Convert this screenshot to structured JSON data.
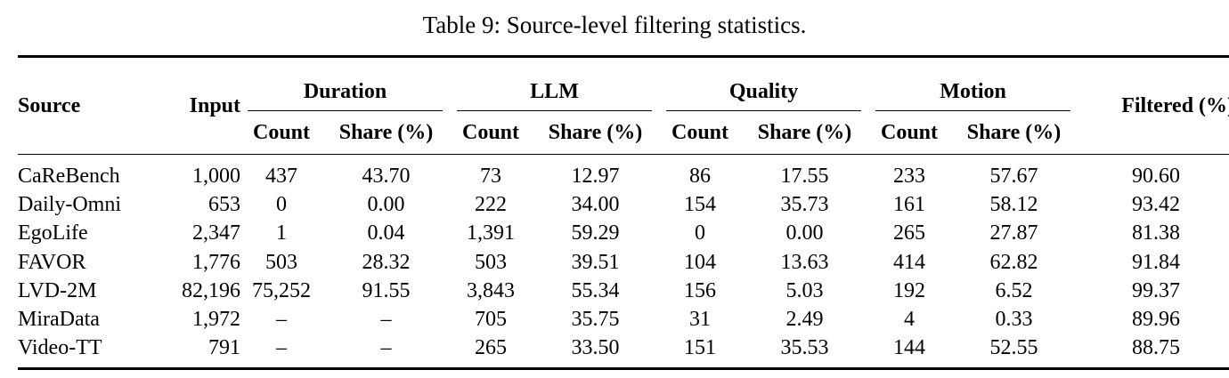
{
  "caption": "Table 9: Source-level filtering statistics.",
  "header": {
    "source": "Source",
    "input": "Input",
    "duration": "Duration",
    "llm": "LLM",
    "quality": "Quality",
    "motion": "Motion",
    "filtered": "Filtered (%)",
    "count": "Count",
    "share": "Share (%)"
  },
  "rows": [
    {
      "source": "CaReBench",
      "input": "1,000",
      "dur_count": "437",
      "dur_share": "43.70",
      "llm_count": "73",
      "llm_share": "12.97",
      "q_count": "86",
      "q_share": "17.55",
      "m_count": "233",
      "m_share": "57.67",
      "filtered": "90.60"
    },
    {
      "source": "Daily-Omni",
      "input": "653",
      "dur_count": "0",
      "dur_share": "0.00",
      "llm_count": "222",
      "llm_share": "34.00",
      "q_count": "154",
      "q_share": "35.73",
      "m_count": "161",
      "m_share": "58.12",
      "filtered": "93.42"
    },
    {
      "source": "EgoLife",
      "input": "2,347",
      "dur_count": "1",
      "dur_share": "0.04",
      "llm_count": "1,391",
      "llm_share": "59.29",
      "q_count": "0",
      "q_share": "0.00",
      "m_count": "265",
      "m_share": "27.87",
      "filtered": "81.38"
    },
    {
      "source": "FAVOR",
      "input": "1,776",
      "dur_count": "503",
      "dur_share": "28.32",
      "llm_count": "503",
      "llm_share": "39.51",
      "q_count": "104",
      "q_share": "13.63",
      "m_count": "414",
      "m_share": "62.82",
      "filtered": "91.84"
    },
    {
      "source": "LVD-2M",
      "input": "82,196",
      "dur_count": "75,252",
      "dur_share": "91.55",
      "llm_count": "3,843",
      "llm_share": "55.34",
      "q_count": "156",
      "q_share": "5.03",
      "m_count": "192",
      "m_share": "6.52",
      "filtered": "99.37"
    },
    {
      "source": "MiraData",
      "input": "1,972",
      "dur_count": "–",
      "dur_share": "–",
      "llm_count": "705",
      "llm_share": "35.75",
      "q_count": "31",
      "q_share": "2.49",
      "m_count": "4",
      "m_share": "0.33",
      "filtered": "89.96"
    },
    {
      "source": "Video-TT",
      "input": "791",
      "dur_count": "–",
      "dur_share": "–",
      "llm_count": "265",
      "llm_share": "33.50",
      "q_count": "151",
      "q_share": "35.53",
      "m_count": "144",
      "m_share": "52.55",
      "filtered": "88.75"
    }
  ]
}
